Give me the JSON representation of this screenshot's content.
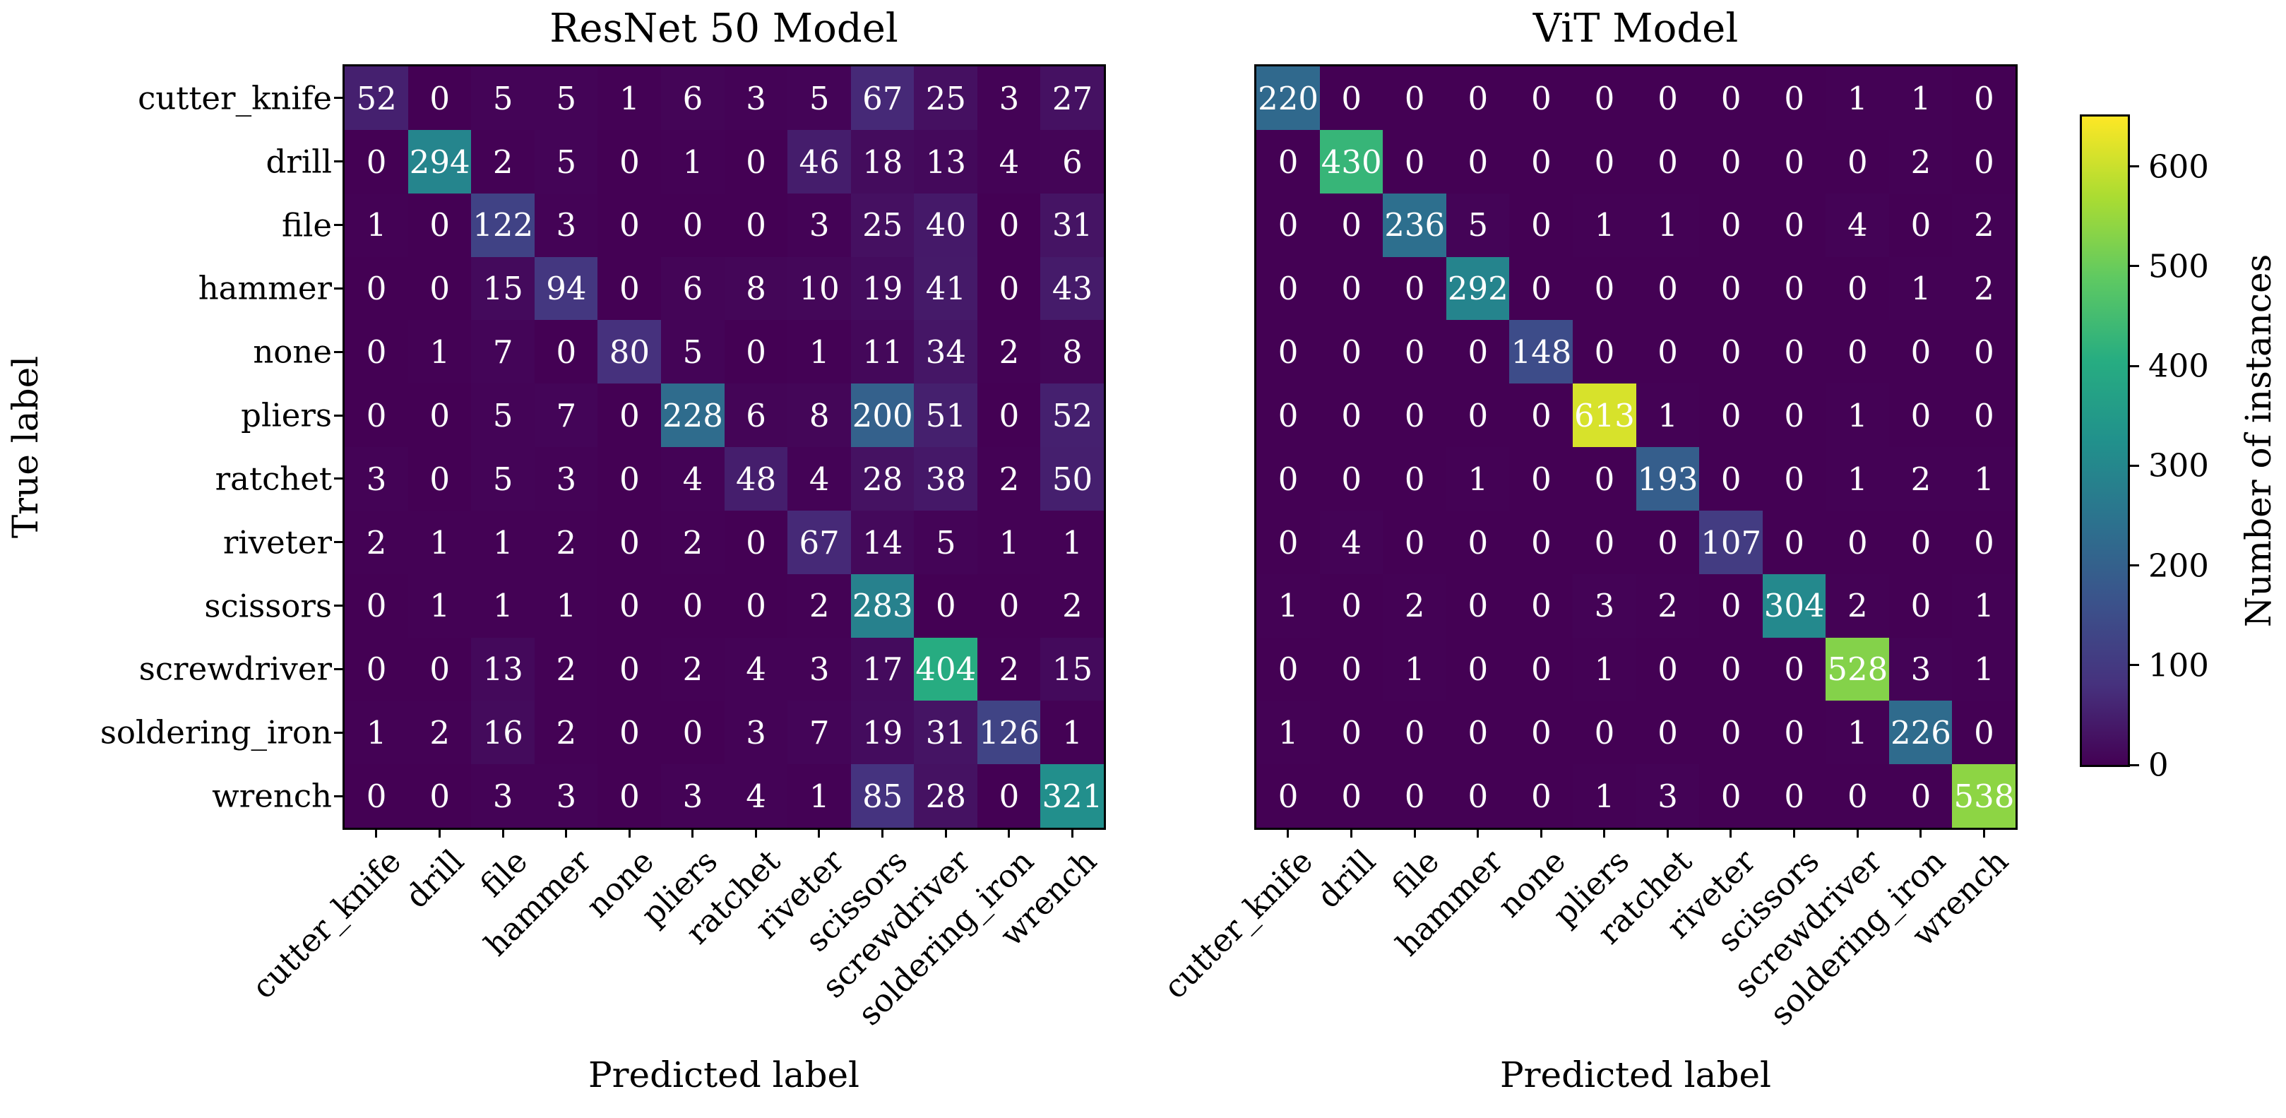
{
  "chart_data": [
    {
      "type": "heatmap",
      "title": "ResNet 50 Model",
      "xlabel": "Predicted label",
      "ylabel": "True label",
      "x_categories": [
        "cutter_knife",
        "drill",
        "file",
        "hammer",
        "none",
        "pliers",
        "ratchet",
        "riveter",
        "scissors",
        "screwdriver",
        "soldering_iron",
        "wrench"
      ],
      "y_categories": [
        "cutter_knife",
        "drill",
        "file",
        "hammer",
        "none",
        "pliers",
        "ratchet",
        "riveter",
        "scissors",
        "screwdriver",
        "soldering_iron",
        "wrench"
      ],
      "values": [
        [
          52,
          0,
          5,
          5,
          1,
          6,
          3,
          5,
          67,
          25,
          3,
          27
        ],
        [
          0,
          294,
          2,
          5,
          0,
          1,
          0,
          46,
          18,
          13,
          4,
          6
        ],
        [
          1,
          0,
          122,
          3,
          0,
          0,
          0,
          3,
          25,
          40,
          0,
          31
        ],
        [
          0,
          0,
          15,
          94,
          0,
          6,
          8,
          10,
          19,
          41,
          0,
          43
        ],
        [
          0,
          1,
          7,
          0,
          80,
          5,
          0,
          1,
          11,
          34,
          2,
          8
        ],
        [
          0,
          0,
          5,
          7,
          0,
          228,
          6,
          8,
          200,
          51,
          0,
          52
        ],
        [
          3,
          0,
          5,
          3,
          0,
          4,
          48,
          4,
          28,
          38,
          2,
          50
        ],
        [
          2,
          1,
          1,
          2,
          0,
          2,
          0,
          67,
          14,
          5,
          1,
          1
        ],
        [
          0,
          1,
          1,
          1,
          0,
          0,
          0,
          2,
          283,
          0,
          0,
          2
        ],
        [
          0,
          0,
          13,
          2,
          0,
          2,
          4,
          3,
          17,
          404,
          2,
          15
        ],
        [
          1,
          2,
          16,
          2,
          0,
          0,
          3,
          7,
          19,
          31,
          126,
          1
        ],
        [
          0,
          0,
          3,
          3,
          0,
          3,
          4,
          1,
          85,
          28,
          0,
          321
        ]
      ],
      "colormap": "viridis",
      "vmin": 0,
      "vmax": 650,
      "grid": false
    },
    {
      "type": "heatmap",
      "title": "ViT Model",
      "xlabel": "Predicted label",
      "ylabel": "",
      "x_categories": [
        "cutter_knife",
        "drill",
        "file",
        "hammer",
        "none",
        "pliers",
        "ratchet",
        "riveter",
        "scissors",
        "screwdriver",
        "soldering_iron",
        "wrench"
      ],
      "y_categories": [
        "cutter_knife",
        "drill",
        "file",
        "hammer",
        "none",
        "pliers",
        "ratchet",
        "riveter",
        "scissors",
        "screwdriver",
        "soldering_iron",
        "wrench"
      ],
      "values": [
        [
          220,
          0,
          0,
          0,
          0,
          0,
          0,
          0,
          0,
          1,
          1,
          0
        ],
        [
          0,
          430,
          0,
          0,
          0,
          0,
          0,
          0,
          0,
          0,
          2,
          0
        ],
        [
          0,
          0,
          236,
          5,
          0,
          1,
          1,
          0,
          0,
          4,
          0,
          2
        ],
        [
          0,
          0,
          0,
          292,
          0,
          0,
          0,
          0,
          0,
          0,
          1,
          2
        ],
        [
          0,
          0,
          0,
          0,
          148,
          0,
          0,
          0,
          0,
          0,
          0,
          0
        ],
        [
          0,
          0,
          0,
          0,
          0,
          613,
          1,
          0,
          0,
          1,
          0,
          0
        ],
        [
          0,
          0,
          0,
          1,
          0,
          0,
          193,
          0,
          0,
          1,
          2,
          1
        ],
        [
          0,
          4,
          0,
          0,
          0,
          0,
          0,
          107,
          0,
          0,
          0,
          0
        ],
        [
          1,
          0,
          2,
          0,
          0,
          3,
          2,
          0,
          304,
          2,
          0,
          1
        ],
        [
          0,
          0,
          1,
          0,
          0,
          1,
          0,
          0,
          0,
          528,
          3,
          1
        ],
        [
          1,
          0,
          0,
          0,
          0,
          0,
          0,
          0,
          0,
          1,
          226,
          0
        ],
        [
          0,
          0,
          0,
          0,
          0,
          1,
          3,
          0,
          0,
          0,
          0,
          538
        ]
      ],
      "colormap": "viridis",
      "vmin": 0,
      "vmax": 650,
      "grid": false
    }
  ],
  "colorbar": {
    "label": "Number of instances",
    "tick_values": [
      0,
      100,
      200,
      300,
      400,
      500,
      600
    ],
    "vmin": 0,
    "vmax": 650,
    "viridis_stops": [
      "#440154",
      "#46327e",
      "#3b528b",
      "#2c728e",
      "#21918c",
      "#27ad81",
      "#5ec962",
      "#aadc32",
      "#fde725"
    ]
  },
  "colors": {
    "background": "#ffffff",
    "cell_text": "#ffffff",
    "axis_text": "#000000"
  }
}
